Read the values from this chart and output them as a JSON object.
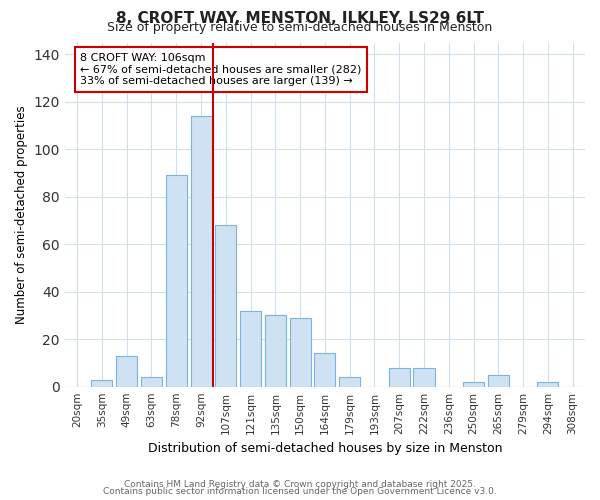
{
  "title": "8, CROFT WAY, MENSTON, ILKLEY, LS29 6LT",
  "subtitle": "Size of property relative to semi-detached houses in Menston",
  "xlabel": "Distribution of semi-detached houses by size in Menston",
  "ylabel": "Number of semi-detached properties",
  "categories": [
    "20sqm",
    "35sqm",
    "49sqm",
    "63sqm",
    "78sqm",
    "92sqm",
    "107sqm",
    "121sqm",
    "135sqm",
    "150sqm",
    "164sqm",
    "179sqm",
    "193sqm",
    "207sqm",
    "222sqm",
    "236sqm",
    "250sqm",
    "265sqm",
    "279sqm",
    "294sqm",
    "308sqm"
  ],
  "values": [
    0,
    3,
    13,
    4,
    89,
    114,
    68,
    32,
    30,
    29,
    14,
    4,
    0,
    8,
    8,
    0,
    2,
    5,
    0,
    2,
    0
  ],
  "bar_color": "#cfe2f3",
  "bar_edge_color": "#7ab4d8",
  "highlight_line_color": "#cc0000",
  "annotation_line1": "8 CROFT WAY: 106sqm",
  "annotation_line2": "← 67% of semi-detached houses are smaller (282)",
  "annotation_line3": "33% of semi-detached houses are larger (139) →",
  "annotation_box_color": "#ffffff",
  "annotation_box_edge": "#cc0000",
  "ylim": [
    0,
    145
  ],
  "yticks": [
    0,
    20,
    40,
    60,
    80,
    100,
    120,
    140
  ],
  "footnote_line1": "Contains HM Land Registry data © Crown copyright and database right 2025.",
  "footnote_line2": "Contains public sector information licensed under the Open Government Licence v3.0.",
  "fig_bg_color": "#ffffff",
  "plot_bg_color": "#ffffff",
  "grid_color": "#d0dff0",
  "title_fontsize": 11,
  "subtitle_fontsize": 9
}
